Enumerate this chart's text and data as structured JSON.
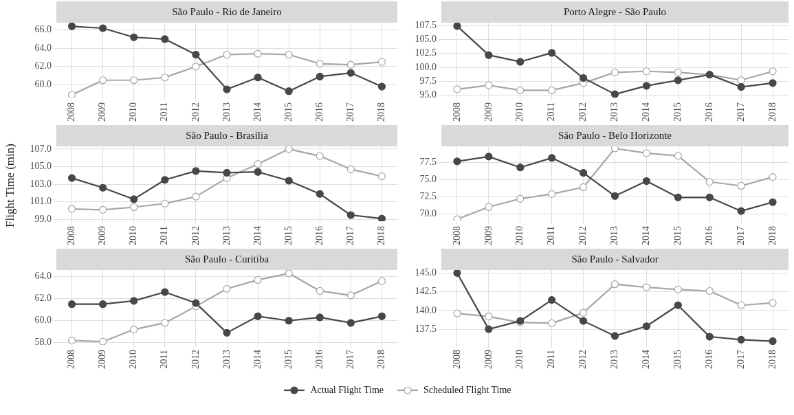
{
  "chart_data": [
    {
      "type": "line",
      "title": "São Paulo - Rio de Janeiro",
      "categories": [
        "2008",
        "2009",
        "2010",
        "2011",
        "2012",
        "2013",
        "2014",
        "2015",
        "2016",
        "2017",
        "2018"
      ],
      "ylim": [
        58.6,
        66.8
      ],
      "yticks": [
        {
          "value": 60,
          "label": "60.0"
        },
        {
          "value": 62,
          "label": "62.0"
        },
        {
          "value": 64,
          "label": "64.0"
        },
        {
          "value": 66,
          "label": "66.0"
        }
      ],
      "grid": true,
      "marker": "circle",
      "legend": "bottom",
      "series": [
        {
          "name": "Actual Flight Time",
          "color": "#474747",
          "values": [
            66.4,
            66.2,
            65.2,
            65.0,
            63.3,
            59.5,
            60.8,
            59.3,
            60.9,
            61.3,
            59.8
          ]
        },
        {
          "name": "Scheduled Flight Time",
          "color": "#a6a6a6",
          "values": [
            58.9,
            60.5,
            60.5,
            60.8,
            62.0,
            63.3,
            63.4,
            63.3,
            62.3,
            62.2,
            62.5
          ]
        }
      ]
    },
    {
      "type": "line",
      "title": "Porto Alegre - São Paulo",
      "categories": [
        "2008",
        "2009",
        "2010",
        "2011",
        "2012",
        "2013",
        "2014",
        "2015",
        "2016",
        "2017",
        "2018"
      ],
      "ylim": [
        94.6,
        108.0
      ],
      "yticks": [
        {
          "value": 95,
          "label": "95.0"
        },
        {
          "value": 97.5,
          "label": "97.5"
        },
        {
          "value": 100,
          "label": "100.0"
        },
        {
          "value": 102.5,
          "label": "102.5"
        },
        {
          "value": 105,
          "label": "105.0"
        },
        {
          "value": 107.5,
          "label": "107.5"
        }
      ],
      "grid": true,
      "marker": "circle",
      "series": [
        {
          "color": "#474747",
          "values": [
            107.4,
            102.2,
            101.0,
            102.6,
            98.1,
            95.2,
            96.7,
            97.7,
            98.7,
            96.5,
            97.2
          ]
        },
        {
          "color": "#a6a6a6",
          "values": [
            96.1,
            96.8,
            95.9,
            95.9,
            97.2,
            99.1,
            99.3,
            99.1,
            98.7,
            97.7,
            99.3
          ]
        }
      ]
    },
    {
      "type": "line",
      "title": "São Paulo - Brasília",
      "ylabel": "Flight Time (min)",
      "categories": [
        "2008",
        "2009",
        "2010",
        "2011",
        "2012",
        "2013",
        "2014",
        "2015",
        "2016",
        "2017",
        "2018"
      ],
      "ylim": [
        98.8,
        107.3
      ],
      "yticks": [
        {
          "value": 99,
          "label": "99.0"
        },
        {
          "value": 101,
          "label": "101.0"
        },
        {
          "value": 103,
          "label": "103.0"
        },
        {
          "value": 105,
          "label": "105.0"
        },
        {
          "value": 107,
          "label": "107.0"
        }
      ],
      "grid": true,
      "marker": "circle",
      "series": [
        {
          "color": "#474747",
          "values": [
            103.7,
            102.6,
            101.3,
            103.5,
            104.5,
            104.3,
            104.4,
            103.4,
            101.9,
            99.5,
            99.1
          ]
        },
        {
          "color": "#a6a6a6",
          "values": [
            100.2,
            100.1,
            100.4,
            100.8,
            101.6,
            103.7,
            105.3,
            107.0,
            106.2,
            104.7,
            103.9
          ]
        }
      ]
    },
    {
      "type": "line",
      "title": "São Paulo - Belo Horizonte",
      "categories": [
        "2008",
        "2009",
        "2010",
        "2011",
        "2012",
        "2013",
        "2014",
        "2015",
        "2016",
        "2017",
        "2018"
      ],
      "ylim": [
        68.9,
        79.9
      ],
      "yticks": [
        {
          "value": 70,
          "label": "70.0"
        },
        {
          "value": 72.5,
          "label": "72.5"
        },
        {
          "value": 75,
          "label": "75.0"
        },
        {
          "value": 77.5,
          "label": "77.5"
        }
      ],
      "grid": true,
      "marker": "circle",
      "series": [
        {
          "color": "#474747",
          "values": [
            77.7,
            78.4,
            76.8,
            78.2,
            76.0,
            72.6,
            74.8,
            72.4,
            72.4,
            70.4,
            71.7
          ]
        },
        {
          "color": "#a6a6a6",
          "values": [
            69.2,
            71.0,
            72.2,
            72.9,
            73.9,
            79.6,
            78.9,
            78.5,
            74.7,
            74.1,
            75.4
          ]
        }
      ]
    },
    {
      "type": "line",
      "title": "São Paulo - Curitiba",
      "categories": [
        "2008",
        "2009",
        "2010",
        "2011",
        "2012",
        "2013",
        "2014",
        "2015",
        "2016",
        "2017",
        "2018"
      ],
      "ylim": [
        57.8,
        64.6
      ],
      "yticks": [
        {
          "value": 58,
          "label": "58.0"
        },
        {
          "value": 60,
          "label": "60.0"
        },
        {
          "value": 62,
          "label": "62.0"
        },
        {
          "value": 64,
          "label": "64.0"
        }
      ],
      "grid": true,
      "marker": "circle",
      "series": [
        {
          "color": "#474747",
          "values": [
            61.5,
            61.5,
            61.8,
            62.6,
            61.6,
            58.9,
            60.4,
            60.0,
            60.3,
            59.8,
            60.4
          ]
        },
        {
          "color": "#a6a6a6",
          "values": [
            58.2,
            58.1,
            59.2,
            59.8,
            61.3,
            62.9,
            63.7,
            64.3,
            62.7,
            62.3,
            63.6
          ]
        }
      ]
    },
    {
      "type": "line",
      "title": "São Paulo - Salvador",
      "categories": [
        "2008",
        "2009",
        "2010",
        "2011",
        "2012",
        "2013",
        "2014",
        "2015",
        "2016",
        "2017",
        "2018"
      ],
      "ylim": [
        135.4,
        145.4
      ],
      "yticks": [
        {
          "value": 137.5,
          "label": "137.5"
        },
        {
          "value": 140,
          "label": "140.0"
        },
        {
          "value": 142.5,
          "label": "142.5"
        },
        {
          "value": 145,
          "label": "145.0"
        }
      ],
      "grid": true,
      "marker": "circle",
      "series": [
        {
          "color": "#474747",
          "values": [
            145.0,
            137.5,
            138.6,
            141.4,
            138.6,
            136.6,
            137.9,
            140.7,
            136.5,
            136.1,
            135.9
          ]
        },
        {
          "color": "#a6a6a6",
          "values": [
            139.6,
            139.2,
            138.4,
            138.3,
            139.7,
            143.5,
            143.1,
            142.8,
            142.6,
            140.7,
            141.0
          ]
        }
      ]
    }
  ]
}
